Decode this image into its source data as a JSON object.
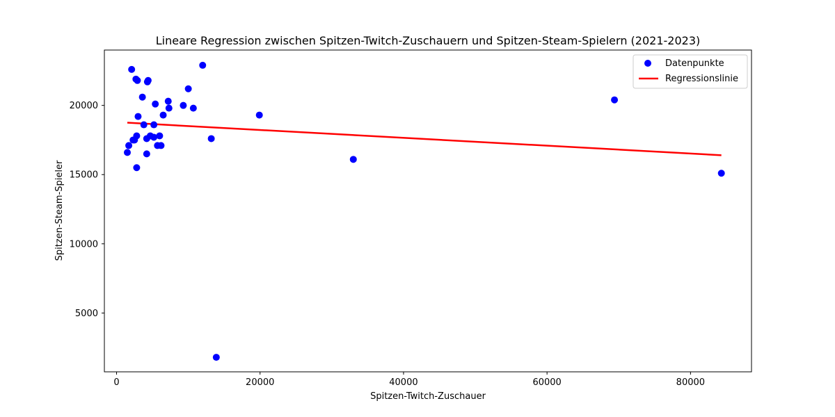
{
  "chart_data": {
    "type": "scatter",
    "title": "Lineare Regression zwischen Spitzen-Twitch-Zuschauern und Spitzen-Steam-Spielern (2021-2023)",
    "xlabel": "Spitzen-Twitch-Zuschauer",
    "ylabel": "Spitzen-Steam-Spieler",
    "xlim": [
      -1700,
      88500
    ],
    "ylim": [
      750,
      24000
    ],
    "xticks": [
      0,
      20000,
      40000,
      60000,
      80000
    ],
    "yticks": [
      5000,
      10000,
      15000,
      20000
    ],
    "grid": false,
    "legend": "top-right",
    "series": [
      {
        "name": "Datenpunkte",
        "kind": "scatter",
        "color": "#0000ff",
        "points": [
          [
            1500,
            16600
          ],
          [
            1700,
            17100
          ],
          [
            2100,
            22600
          ],
          [
            2300,
            17500
          ],
          [
            2500,
            17500
          ],
          [
            2700,
            21900
          ],
          [
            2900,
            21800
          ],
          [
            2800,
            17800
          ],
          [
            3000,
            19200
          ],
          [
            2800,
            15500
          ],
          [
            3600,
            20600
          ],
          [
            3800,
            18600
          ],
          [
            4200,
            17600
          ],
          [
            4300,
            21700
          ],
          [
            4400,
            21800
          ],
          [
            4200,
            16500
          ],
          [
            4700,
            17800
          ],
          [
            5200,
            17700
          ],
          [
            5200,
            18600
          ],
          [
            5400,
            20100
          ],
          [
            5700,
            17100
          ],
          [
            6000,
            17800
          ],
          [
            6200,
            17100
          ],
          [
            6500,
            19300
          ],
          [
            7200,
            20300
          ],
          [
            7300,
            19800
          ],
          [
            9300,
            20000
          ],
          [
            10000,
            21200
          ],
          [
            10700,
            19800
          ],
          [
            12000,
            22900
          ],
          [
            13200,
            17600
          ],
          [
            13900,
            1800
          ],
          [
            19900,
            19300
          ],
          [
            33000,
            16100
          ],
          [
            69400,
            20400
          ],
          [
            84300,
            15100
          ]
        ]
      },
      {
        "name": "Regressionslinie",
        "kind": "line",
        "color": "#ff0000",
        "points": [
          [
            1500,
            18750
          ],
          [
            84300,
            16400
          ]
        ]
      }
    ]
  }
}
